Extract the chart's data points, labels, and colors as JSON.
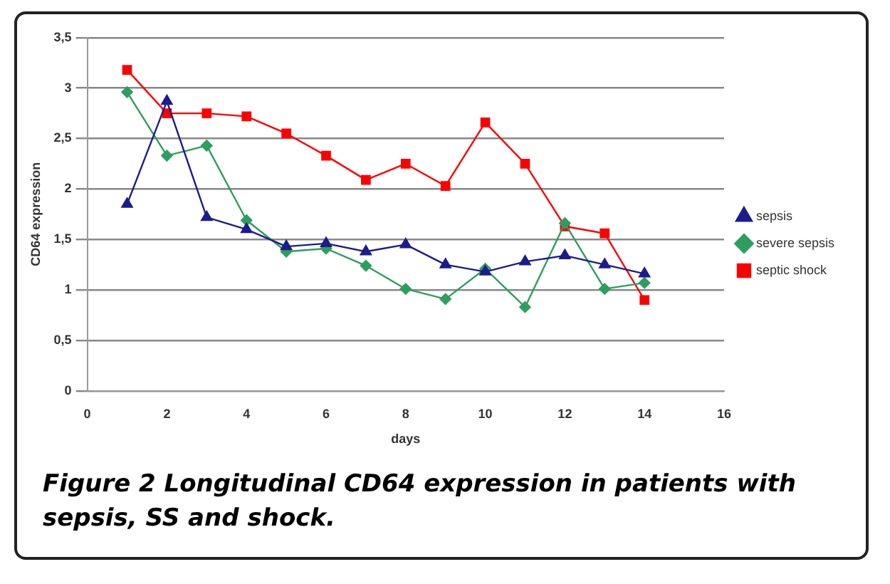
{
  "chart_data": {
    "type": "line",
    "title": "Figure 2 Longitudinal CD64 expression in patients with sepsis, SS and shock.",
    "xlabel": "days",
    "ylabel": "CD64 expression",
    "x": [
      1,
      2,
      3,
      4,
      5,
      6,
      7,
      8,
      9,
      10,
      11,
      12,
      13,
      14
    ],
    "series": [
      {
        "name": "sepsis",
        "color": "#1c1c8c",
        "marker": "triangle",
        "values": [
          1.85,
          2.87,
          1.72,
          1.6,
          1.43,
          1.46,
          1.38,
          1.45,
          1.25,
          1.18,
          1.28,
          1.34,
          1.25,
          1.16
        ]
      },
      {
        "name": "severe sepsis",
        "color": "#2e9e5e",
        "marker": "diamond",
        "values": [
          2.96,
          2.33,
          2.43,
          1.69,
          1.38,
          1.41,
          1.24,
          1.01,
          0.91,
          1.21,
          0.83,
          1.66,
          1.01,
          1.07
        ]
      },
      {
        "name": "septic shock",
        "color": "#ff0000",
        "marker": "square",
        "values": [
          3.18,
          2.75,
          2.75,
          2.72,
          2.55,
          2.33,
          2.09,
          2.25,
          2.03,
          2.66,
          2.25,
          1.63,
          1.56,
          0.9
        ]
      }
    ],
    "xlim": [
      0,
      16
    ],
    "xticks": [
      0,
      2,
      4,
      6,
      8,
      10,
      12,
      14,
      16
    ],
    "ylim": [
      0,
      3.5
    ],
    "yticks": [
      0,
      {
        "value": 0.5,
        "label": "0,5"
      },
      1,
      {
        "value": 1.5,
        "label": "1,5"
      },
      2,
      {
        "value": 2.5,
        "label": "2,5"
      },
      3,
      {
        "value": 3.5,
        "label": "3,5"
      }
    ],
    "grid": "y",
    "legend": "right",
    "line_style": "solid"
  }
}
